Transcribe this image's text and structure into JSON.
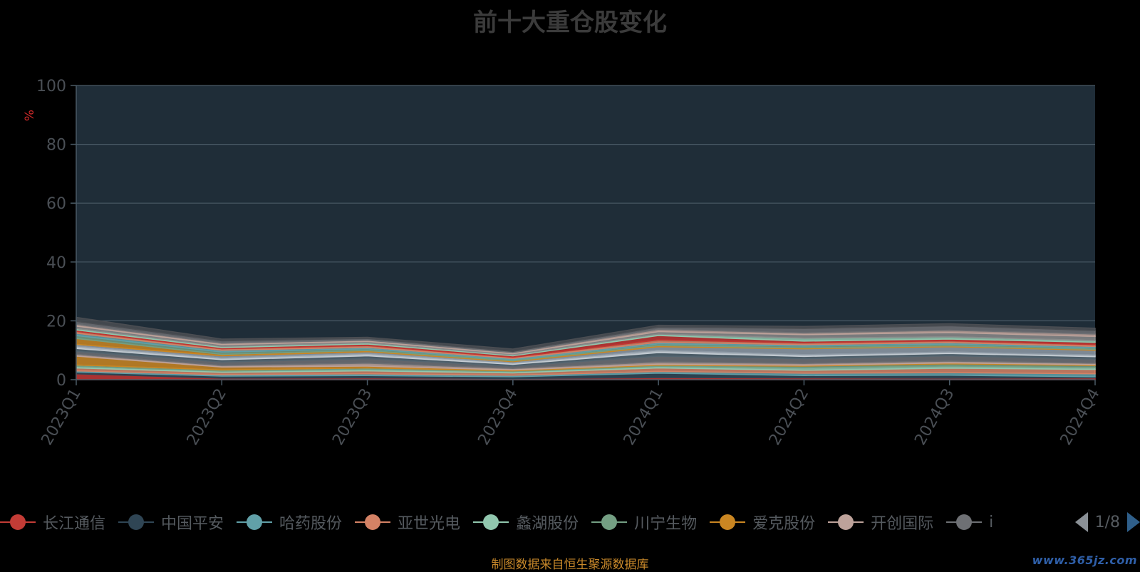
{
  "title": "前十大重仓股变化",
  "footer": "制图数据来自恒生聚源数据库",
  "watermark": "www.365jz.com",
  "legend_pager": "1/8",
  "colors": {
    "background": "#000000",
    "plot_background": "#1f2d38",
    "grid": "#4a5a66",
    "axis_text": "#4a4f55",
    "unit_color": "#d12a2a"
  },
  "legend": [
    {
      "name": "长江通信",
      "color": "#c33c36"
    },
    {
      "name": "中国平安",
      "color": "#2f4554"
    },
    {
      "name": "哈药股份",
      "color": "#61a0a8"
    },
    {
      "name": "亚世光电",
      "color": "#d48265"
    },
    {
      "name": "蠡湖股份",
      "color": "#91c7ae"
    },
    {
      "name": "川宁生物",
      "color": "#749f83"
    },
    {
      "name": "爱克股份",
      "color": "#ca8622"
    },
    {
      "name": "开创国际",
      "color": "#bda29a"
    },
    {
      "name": "i",
      "color": "#6e7074"
    }
  ],
  "chart_data": {
    "type": "area",
    "stacked": true,
    "title": "前十大重仓股变化",
    "ylabel": "%",
    "ylim": [
      0,
      100
    ],
    "yticks": [
      0,
      20,
      40,
      60,
      80,
      100
    ],
    "grid": true,
    "legend_position": "bottom",
    "categories": [
      "2023Q1",
      "2023Q2",
      "2023Q3",
      "2023Q4",
      "2024Q1",
      "2024Q2",
      "2024Q3",
      "2024Q4"
    ],
    "series": [
      {
        "color": "#c23531",
        "values": [
          2.0,
          0.5,
          0.6,
          0.4,
          0.7,
          0.6,
          0.5,
          0.6
        ]
      },
      {
        "color": "#2f4554",
        "values": [
          0.6,
          0.7,
          0.8,
          0.6,
          1.5,
          0.8,
          1.0,
          0.4
        ]
      },
      {
        "color": "#61a0a8",
        "values": [
          0.4,
          0.5,
          0.6,
          0.5,
          0.6,
          0.8,
          0.9,
          1.0
        ]
      },
      {
        "color": "#d48265",
        "values": [
          1.0,
          0.8,
          1.0,
          0.8,
          1.2,
          1.0,
          1.5,
          1.5
        ]
      },
      {
        "color": "#91c7ae",
        "values": [
          0.5,
          0.4,
          0.5,
          0.4,
          0.5,
          0.8,
          0.7,
          0.6
        ]
      },
      {
        "color": "#749f83",
        "values": [
          0.5,
          0.4,
          0.5,
          0.3,
          0.4,
          0.6,
          0.8,
          0.7
        ]
      },
      {
        "color": "#ca8622",
        "values": [
          3.0,
          1.0,
          0.6,
          0.3,
          0.3,
          0.3,
          0.3,
          0.3
        ]
      },
      {
        "color": "#bda29a",
        "values": [
          0.6,
          0.5,
          1.0,
          0.5,
          0.8,
          0.6,
          0.6,
          0.5
        ]
      },
      {
        "color": "#6e7074",
        "values": [
          1.0,
          1.2,
          1.5,
          0.8,
          2.0,
          1.6,
          1.8,
          1.4
        ]
      },
      {
        "color": "#546570",
        "values": [
          1.0,
          0.8,
          1.0,
          0.6,
          1.2,
          0.8,
          0.8,
          0.8
        ]
      },
      {
        "color": "#c4ccd3",
        "values": [
          0.8,
          0.6,
          0.8,
          0.5,
          0.8,
          0.6,
          0.5,
          0.6
        ]
      },
      {
        "color": "#8e9aa6",
        "values": [
          0.6,
          0.7,
          0.6,
          0.4,
          1.2,
          2.0,
          1.8,
          1.6
        ]
      },
      {
        "color": "#ca8622",
        "values": [
          2.0,
          0.5,
          0.4,
          0.3,
          0.4,
          0.3,
          0.3,
          0.3
        ]
      },
      {
        "color": "#749f83",
        "values": [
          1.0,
          0.8,
          0.6,
          0.4,
          0.6,
          0.6,
          0.6,
          0.5
        ]
      },
      {
        "color": "#61a0a8",
        "values": [
          0.8,
          0.6,
          0.5,
          0.4,
          0.5,
          0.5,
          0.5,
          0.5
        ]
      },
      {
        "color": "#d48265",
        "values": [
          0.6,
          0.5,
          0.6,
          0.4,
          0.8,
          0.6,
          0.6,
          0.6
        ]
      },
      {
        "color": "#c23531",
        "values": [
          0.5,
          0.4,
          0.5,
          0.5,
          1.5,
          0.6,
          0.6,
          0.8
        ]
      },
      {
        "color": "#91c7ae",
        "values": [
          0.5,
          0.4,
          0.4,
          0.3,
          0.5,
          1.0,
          0.8,
          0.6
        ]
      },
      {
        "color": "#8a8a8a",
        "values": [
          0.8,
          0.6,
          0.5,
          0.4,
          0.8,
          1.2,
          1.4,
          1.4
        ]
      },
      {
        "color": "#bda29a",
        "values": [
          0.6,
          0.5,
          0.4,
          0.4,
          0.8,
          0.6,
          0.8,
          0.8
        ]
      },
      {
        "color": "#6e7074",
        "values": [
          1.0,
          0.8,
          0.6,
          0.4,
          0.8,
          1.5,
          1.5,
          1.2
        ]
      },
      {
        "color": "#4a4d52",
        "values": [
          1.4,
          0.6,
          0.4,
          0.8,
          0.6,
          0.7,
          0.7,
          0.8
        ]
      }
    ]
  }
}
